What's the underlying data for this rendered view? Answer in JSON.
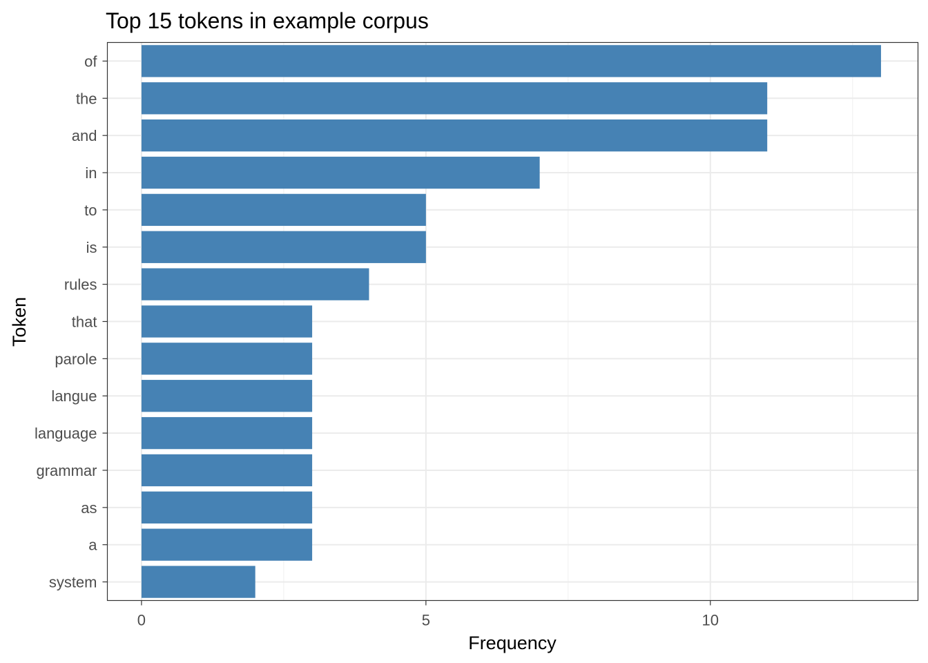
{
  "chart_data": {
    "type": "bar",
    "orientation": "horizontal",
    "title": "Top 15 tokens in example corpus",
    "xlabel": "Frequency",
    "ylabel": "Token",
    "categories": [
      "of",
      "the",
      "and",
      "in",
      "to",
      "is",
      "rules",
      "that",
      "parole",
      "langue",
      "language",
      "grammar",
      "as",
      "a",
      "system"
    ],
    "values": [
      13,
      11,
      11,
      7,
      5,
      5,
      4,
      3,
      3,
      3,
      3,
      3,
      3,
      3,
      2
    ],
    "xlim": [
      -0.6,
      13.65
    ],
    "xticks": [
      0,
      5,
      10
    ],
    "xtick_labels": [
      "0",
      "5",
      "10"
    ],
    "grid": true,
    "bar_color": "#4682B4"
  }
}
